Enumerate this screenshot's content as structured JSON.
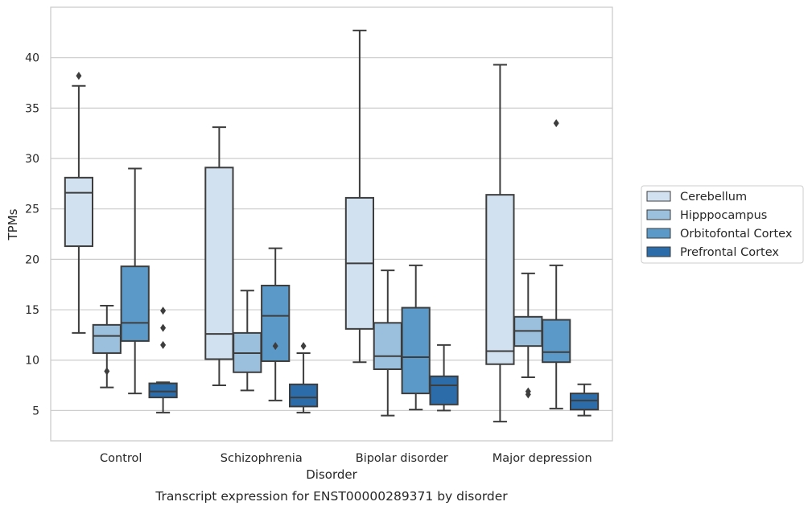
{
  "chart_data": {
    "type": "box",
    "title": "",
    "caption": "Transcript expression for ENST00000289371 by disorder",
    "xlabel": "Disorder",
    "ylabel": "TPMs",
    "ylim": [
      2,
      45
    ],
    "yticks": [
      5,
      10,
      15,
      20,
      25,
      30,
      35,
      40
    ],
    "grid": "horizontal",
    "legend_position": "right",
    "categories": [
      "Control",
      "Schizophrenia",
      "Bipolar disorder",
      "Major depression"
    ],
    "series": [
      {
        "name": "Cerebellum",
        "color": "#d2e1f0",
        "boxes": [
          {
            "whisker_low": 12.7,
            "q1": 21.3,
            "median": 26.6,
            "q3": 28.1,
            "whisker_high": 37.2,
            "outliers": [
              38.2
            ]
          },
          {
            "whisker_low": 7.5,
            "q1": 10.1,
            "median": 12.6,
            "q3": 29.1,
            "whisker_high": 33.1,
            "outliers": []
          },
          {
            "whisker_low": 9.8,
            "q1": 13.1,
            "median": 19.6,
            "q3": 26.1,
            "whisker_high": 42.7,
            "outliers": []
          },
          {
            "whisker_low": 3.9,
            "q1": 9.6,
            "median": 10.9,
            "q3": 26.4,
            "whisker_high": 39.3,
            "outliers": []
          }
        ]
      },
      {
        "name": "Hipppocampus",
        "color": "#9ac0dd",
        "boxes": [
          {
            "whisker_low": 7.3,
            "q1": 10.7,
            "median": 12.4,
            "q3": 13.5,
            "whisker_high": 15.4,
            "outliers": [
              8.9
            ]
          },
          {
            "whisker_low": 7.0,
            "q1": 8.8,
            "median": 10.7,
            "q3": 12.7,
            "whisker_high": 16.9,
            "outliers": []
          },
          {
            "whisker_low": 4.5,
            "q1": 9.1,
            "median": 10.4,
            "q3": 13.7,
            "whisker_high": 18.9,
            "outliers": []
          },
          {
            "whisker_low": 8.3,
            "q1": 11.4,
            "median": 12.9,
            "q3": 14.3,
            "whisker_high": 18.6,
            "outliers": [
              6.6,
              6.9
            ]
          }
        ]
      },
      {
        "name": "Orbitofontal Cortex",
        "color": "#5b9ac8",
        "boxes": [
          {
            "whisker_low": 6.7,
            "q1": 11.9,
            "median": 13.7,
            "q3": 19.3,
            "whisker_high": 29.0,
            "outliers": []
          },
          {
            "whisker_low": 6.0,
            "q1": 9.9,
            "median": 14.4,
            "q3": 17.4,
            "whisker_high": 21.1,
            "outliers": [
              11.4
            ]
          },
          {
            "whisker_low": 5.1,
            "q1": 6.7,
            "median": 10.3,
            "q3": 15.2,
            "whisker_high": 19.4,
            "outliers": []
          },
          {
            "whisker_low": 5.2,
            "q1": 9.8,
            "median": 10.8,
            "q3": 14.0,
            "whisker_high": 19.4,
            "outliers": [
              33.5
            ]
          }
        ]
      },
      {
        "name": "Prefrontal Cortex",
        "color": "#2c6ca9",
        "boxes": [
          {
            "whisker_low": 4.8,
            "q1": 6.3,
            "median": 6.9,
            "q3": 7.7,
            "whisker_high": 7.8,
            "outliers": [
              11.5,
              13.2,
              14.9
            ]
          },
          {
            "whisker_low": 4.8,
            "q1": 5.4,
            "median": 6.3,
            "q3": 7.6,
            "whisker_high": 10.7,
            "outliers": [
              11.4
            ]
          },
          {
            "whisker_low": 5.0,
            "q1": 5.6,
            "median": 7.5,
            "q3": 8.4,
            "whisker_high": 11.5,
            "outliers": []
          },
          {
            "whisker_low": 4.5,
            "q1": 5.1,
            "median": 6.0,
            "q3": 6.7,
            "whisker_high": 7.6,
            "outliers": []
          }
        ]
      }
    ]
  }
}
